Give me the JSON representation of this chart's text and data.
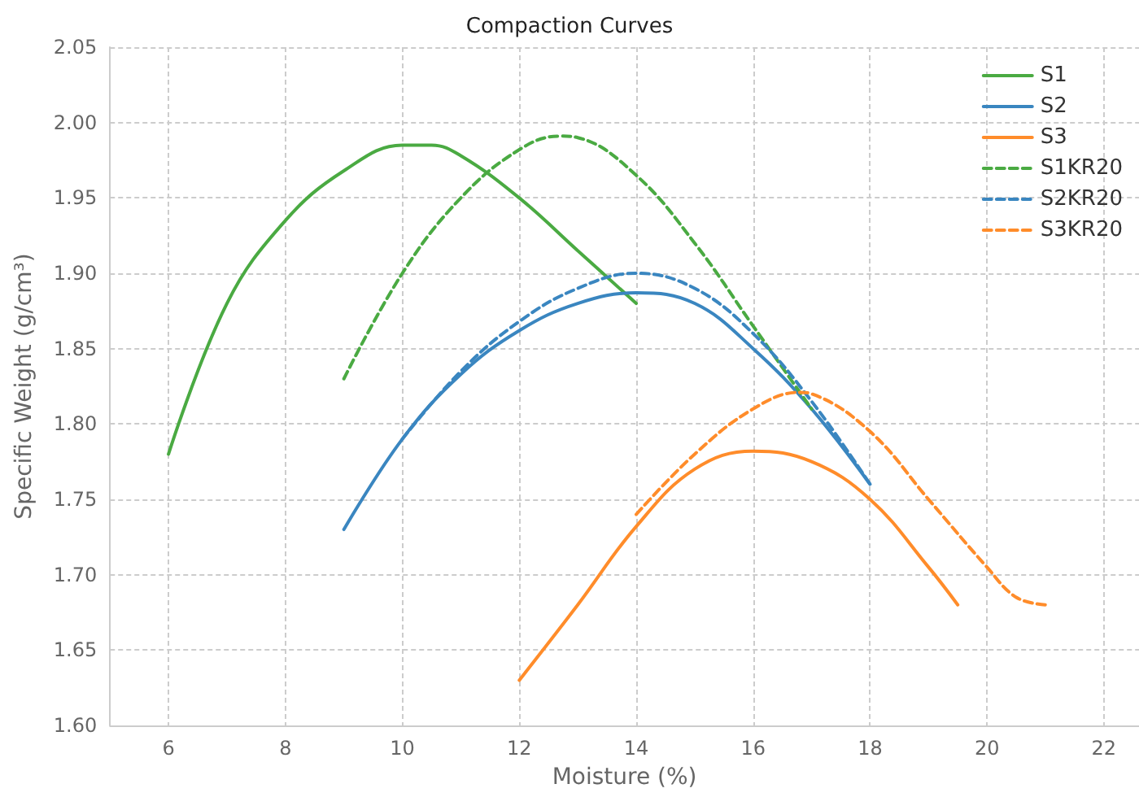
{
  "chart_data": {
    "type": "line",
    "title": "Compaction Curves",
    "xlabel": "Moisture (%)",
    "ylabel": "Specific Weight (g/cm³)",
    "xlim": [
      5,
      22.6
    ],
    "xticks": [
      6,
      8,
      10,
      12,
      14,
      16,
      18,
      20,
      22
    ],
    "ylim": [
      1.6,
      2.05
    ],
    "yticks": [
      {
        "value": 1.6,
        "label": "1.60"
      },
      1.65,
      {
        "value": 1.7,
        "label": "1.70"
      },
      1.75,
      {
        "value": 1.8,
        "label": "1.80"
      },
      1.85,
      {
        "value": 1.9,
        "label": "1.90"
      },
      1.95,
      {
        "value": 2.0,
        "label": "2.00"
      },
      2.05
    ],
    "grid": true,
    "legend": "top right",
    "marker": "none",
    "series": [
      {
        "name": "S1",
        "color": "#4aaa42",
        "line_style": "solid",
        "x": [
          6,
          7,
          8,
          9,
          10,
          10.5,
          11,
          12,
          13,
          14
        ],
        "values": [
          1.78,
          1.88,
          1.935,
          1.968,
          1.985,
          1.985,
          1.978,
          1.95,
          1.915,
          1.88
        ]
      },
      {
        "name": "S2",
        "color": "#3a86c0",
        "line_style": "solid",
        "x": [
          9,
          10,
          11,
          12,
          13,
          14,
          15,
          16,
          17,
          18
        ],
        "values": [
          1.73,
          1.79,
          1.833,
          1.862,
          1.88,
          1.887,
          1.88,
          1.85,
          1.81,
          1.76
        ]
      },
      {
        "name": "S3",
        "color": "#ff8c2a",
        "line_style": "solid",
        "x": [
          12,
          13,
          14,
          15,
          16,
          17,
          18,
          19,
          19.5
        ],
        "values": [
          1.63,
          1.68,
          1.732,
          1.77,
          1.782,
          1.775,
          1.75,
          1.705,
          1.68
        ]
      },
      {
        "name": "S1KR20",
        "color": "#4aaa42",
        "line_style": "dashed",
        "x": [
          9,
          10,
          11,
          12,
          12.7,
          13,
          14,
          15,
          16,
          17
        ],
        "values": [
          1.83,
          1.9,
          1.95,
          1.982,
          1.991,
          1.99,
          1.965,
          1.92,
          1.865,
          1.81
        ]
      },
      {
        "name": "S2KR20",
        "color": "#3a86c0",
        "line_style": "dashed",
        "x": [
          10,
          11,
          12,
          13,
          14,
          15,
          16,
          17,
          18
        ],
        "values": [
          1.79,
          1.835,
          1.868,
          1.89,
          1.9,
          1.89,
          1.86,
          1.815,
          1.76
        ]
      },
      {
        "name": "S3KR20",
        "color": "#ff8c2a",
        "line_style": "dashed",
        "x": [
          14,
          15,
          16,
          16.8,
          17,
          18,
          19,
          20,
          20.5,
          21
        ],
        "values": [
          1.74,
          1.78,
          1.81,
          1.821,
          1.82,
          1.795,
          1.75,
          1.705,
          1.685,
          1.68
        ]
      }
    ]
  }
}
